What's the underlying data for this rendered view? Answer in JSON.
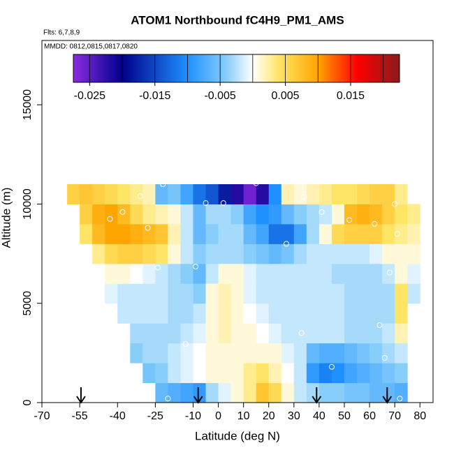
{
  "chart_data": {
    "type": "heatmap",
    "title": "ATOM1 Northbound fC4H9_PM1_AMS",
    "annotations": [
      "Flts: 6,7,8,9",
      "MMDD: 0812,0815,0817,0820"
    ],
    "xlabel": "Latitude (deg N)",
    "ylabel": "Altitude (m)",
    "xlim": [
      -70,
      85.2
    ],
    "ylim": [
      0,
      18240
    ],
    "xticks": [
      -70,
      -55,
      -40,
      -25,
      -10,
      0,
      10,
      20,
      30,
      40,
      50,
      60,
      70,
      80
    ],
    "yticks": [
      0,
      5000,
      10000,
      15000
    ],
    "x_edges": [
      -60,
      -55,
      -50,
      -45,
      -40,
      -35,
      -30,
      -25,
      -20,
      -15,
      -10,
      -5,
      0,
      5,
      10,
      15,
      20,
      25,
      30,
      35,
      40,
      45,
      50,
      55,
      60,
      65,
      70,
      75,
      80
    ],
    "y_edges": [
      0,
      1000,
      2000,
      3000,
      4000,
      5000,
      6000,
      7000,
      8000,
      9000,
      10000,
      11000
    ],
    "z": [
      [
        null,
        null,
        null,
        null,
        null,
        null,
        null,
        -0.006,
        -0.007,
        -0.008,
        -0.009,
        -0.003,
        -0.001,
        0.001,
        0.003,
        0.007,
        0.005,
        0.001,
        -0.002,
        -0.003,
        -0.004,
        -0.004,
        -0.005,
        -0.005,
        -0.006,
        -0.006,
        -0.007,
        null
      ],
      [
        null,
        null,
        null,
        null,
        null,
        null,
        -0.005,
        -0.004,
        -0.002,
        -0.001,
        0.0,
        0.001,
        0.001,
        0.001,
        0.003,
        0.004,
        0.002,
        0.0,
        -0.002,
        -0.009,
        -0.011,
        -0.01,
        -0.008,
        -0.007,
        -0.006,
        -0.005,
        -0.004,
        null
      ],
      [
        null,
        null,
        null,
        null,
        null,
        -0.004,
        -0.003,
        -0.003,
        -0.002,
        -0.001,
        0.0,
        0.001,
        0.001,
        0.001,
        0.001,
        0.001,
        0.001,
        -0.001,
        -0.002,
        -0.006,
        -0.007,
        -0.007,
        -0.006,
        -0.005,
        -0.004,
        -0.003,
        -0.002,
        null
      ],
      [
        null,
        null,
        null,
        null,
        null,
        -0.003,
        -0.003,
        -0.003,
        -0.003,
        -0.002,
        -0.001,
        0.001,
        0.002,
        0.001,
        0.001,
        0.0,
        -0.001,
        -0.002,
        -0.002,
        -0.002,
        -0.002,
        -0.002,
        -0.003,
        -0.003,
        -0.003,
        -0.002,
        0.002,
        null
      ],
      [
        null,
        null,
        null,
        null,
        -0.002,
        -0.002,
        -0.002,
        -0.002,
        -0.003,
        -0.003,
        -0.002,
        0.001,
        0.002,
        0.001,
        0.0,
        -0.001,
        -0.002,
        -0.002,
        -0.002,
        -0.002,
        -0.002,
        -0.002,
        -0.003,
        -0.003,
        -0.003,
        -0.003,
        0.004,
        null
      ],
      [
        null,
        null,
        null,
        -0.001,
        -0.002,
        -0.002,
        -0.002,
        -0.002,
        -0.003,
        -0.003,
        -0.004,
        0.001,
        0.002,
        0.001,
        -0.001,
        -0.002,
        -0.002,
        -0.002,
        -0.002,
        -0.002,
        -0.002,
        -0.002,
        -0.003,
        -0.003,
        -0.003,
        -0.003,
        0.004,
        -0.002
      ],
      [
        null,
        null,
        null,
        0.001,
        0.001,
        0.0,
        -0.001,
        -0.002,
        -0.003,
        -0.004,
        -0.006,
        -0.002,
        0.001,
        0.001,
        -0.001,
        -0.002,
        -0.002,
        -0.002,
        -0.002,
        -0.002,
        -0.002,
        -0.003,
        -0.003,
        -0.003,
        -0.003,
        -0.002,
        0.001,
        -0.001
      ],
      [
        null,
        null,
        0.003,
        0.005,
        0.006,
        0.006,
        0.005,
        0.004,
        0.001,
        -0.002,
        -0.004,
        -0.003,
        -0.003,
        -0.003,
        -0.004,
        -0.005,
        -0.006,
        -0.005,
        -0.003,
        -0.002,
        -0.002,
        -0.002,
        -0.002,
        -0.002,
        -0.001,
        0.001,
        0.001,
        0.001
      ],
      [
        null,
        0.004,
        0.008,
        0.01,
        0.01,
        0.009,
        0.008,
        0.007,
        0.002,
        -0.002,
        -0.006,
        -0.004,
        -0.003,
        -0.003,
        -0.006,
        -0.008,
        -0.012,
        -0.012,
        -0.008,
        -0.003,
        0.001,
        0.005,
        0.006,
        0.006,
        0.006,
        0.004,
        0.003,
        0.002
      ],
      [
        null,
        0.006,
        0.009,
        0.01,
        0.008,
        0.005,
        0.003,
        0.002,
        0.001,
        -0.002,
        -0.006,
        -0.003,
        -0.003,
        -0.004,
        -0.008,
        -0.01,
        -0.009,
        -0.006,
        -0.004,
        -0.003,
        -0.002,
        0.001,
        0.008,
        0.009,
        0.008,
        0.006,
        0.004,
        0.003
      ],
      [
        0.006,
        0.007,
        0.006,
        0.005,
        0.004,
        0.003,
        0.002,
        -0.006,
        -0.005,
        -0.008,
        -0.012,
        -0.014,
        -0.018,
        -0.022,
        -0.026,
        -0.022,
        -0.01,
        0.002,
        0.001,
        0.002,
        0.003,
        0.004,
        0.004,
        0.005,
        0.006,
        0.006,
        0.003,
        null
      ]
    ],
    "colorscale": [
      [
        -0.0275,
        "#8a2be2"
      ],
      [
        -0.02,
        "#00008b"
      ],
      [
        -0.01,
        "#1e90ff"
      ],
      [
        -0.004,
        "#87cefa"
      ],
      [
        0,
        "#ffffff"
      ],
      [
        0.004,
        "#ffe566"
      ],
      [
        0.01,
        "#ffa500"
      ],
      [
        0.016,
        "#ff0000"
      ],
      [
        0.0225,
        "#8b1a1a"
      ]
    ],
    "zlim": [
      -0.0275,
      0.0225
    ],
    "zticks": [
      -0.025,
      -0.015,
      -0.005,
      0.005,
      0.015
    ],
    "points": {
      "lat": [
        -43,
        -28,
        -38,
        -31,
        -22,
        -9,
        -5,
        2,
        15,
        27,
        34,
        41,
        52,
        62,
        70,
        68,
        71,
        45,
        64,
        -13,
        -24,
        33,
        72,
        66,
        -20
      ],
      "alt": [
        9250,
        8800,
        9600,
        10400,
        11000,
        6850,
        10050,
        10050,
        11050,
        8000,
        10350,
        9600,
        9200,
        9000,
        10000,
        6550,
        8500,
        1800,
        3900,
        2950,
        6800,
        3500,
        200,
        2250,
        200
      ]
    },
    "arrows": [
      -54.5,
      -8,
      39,
      67
    ]
  }
}
